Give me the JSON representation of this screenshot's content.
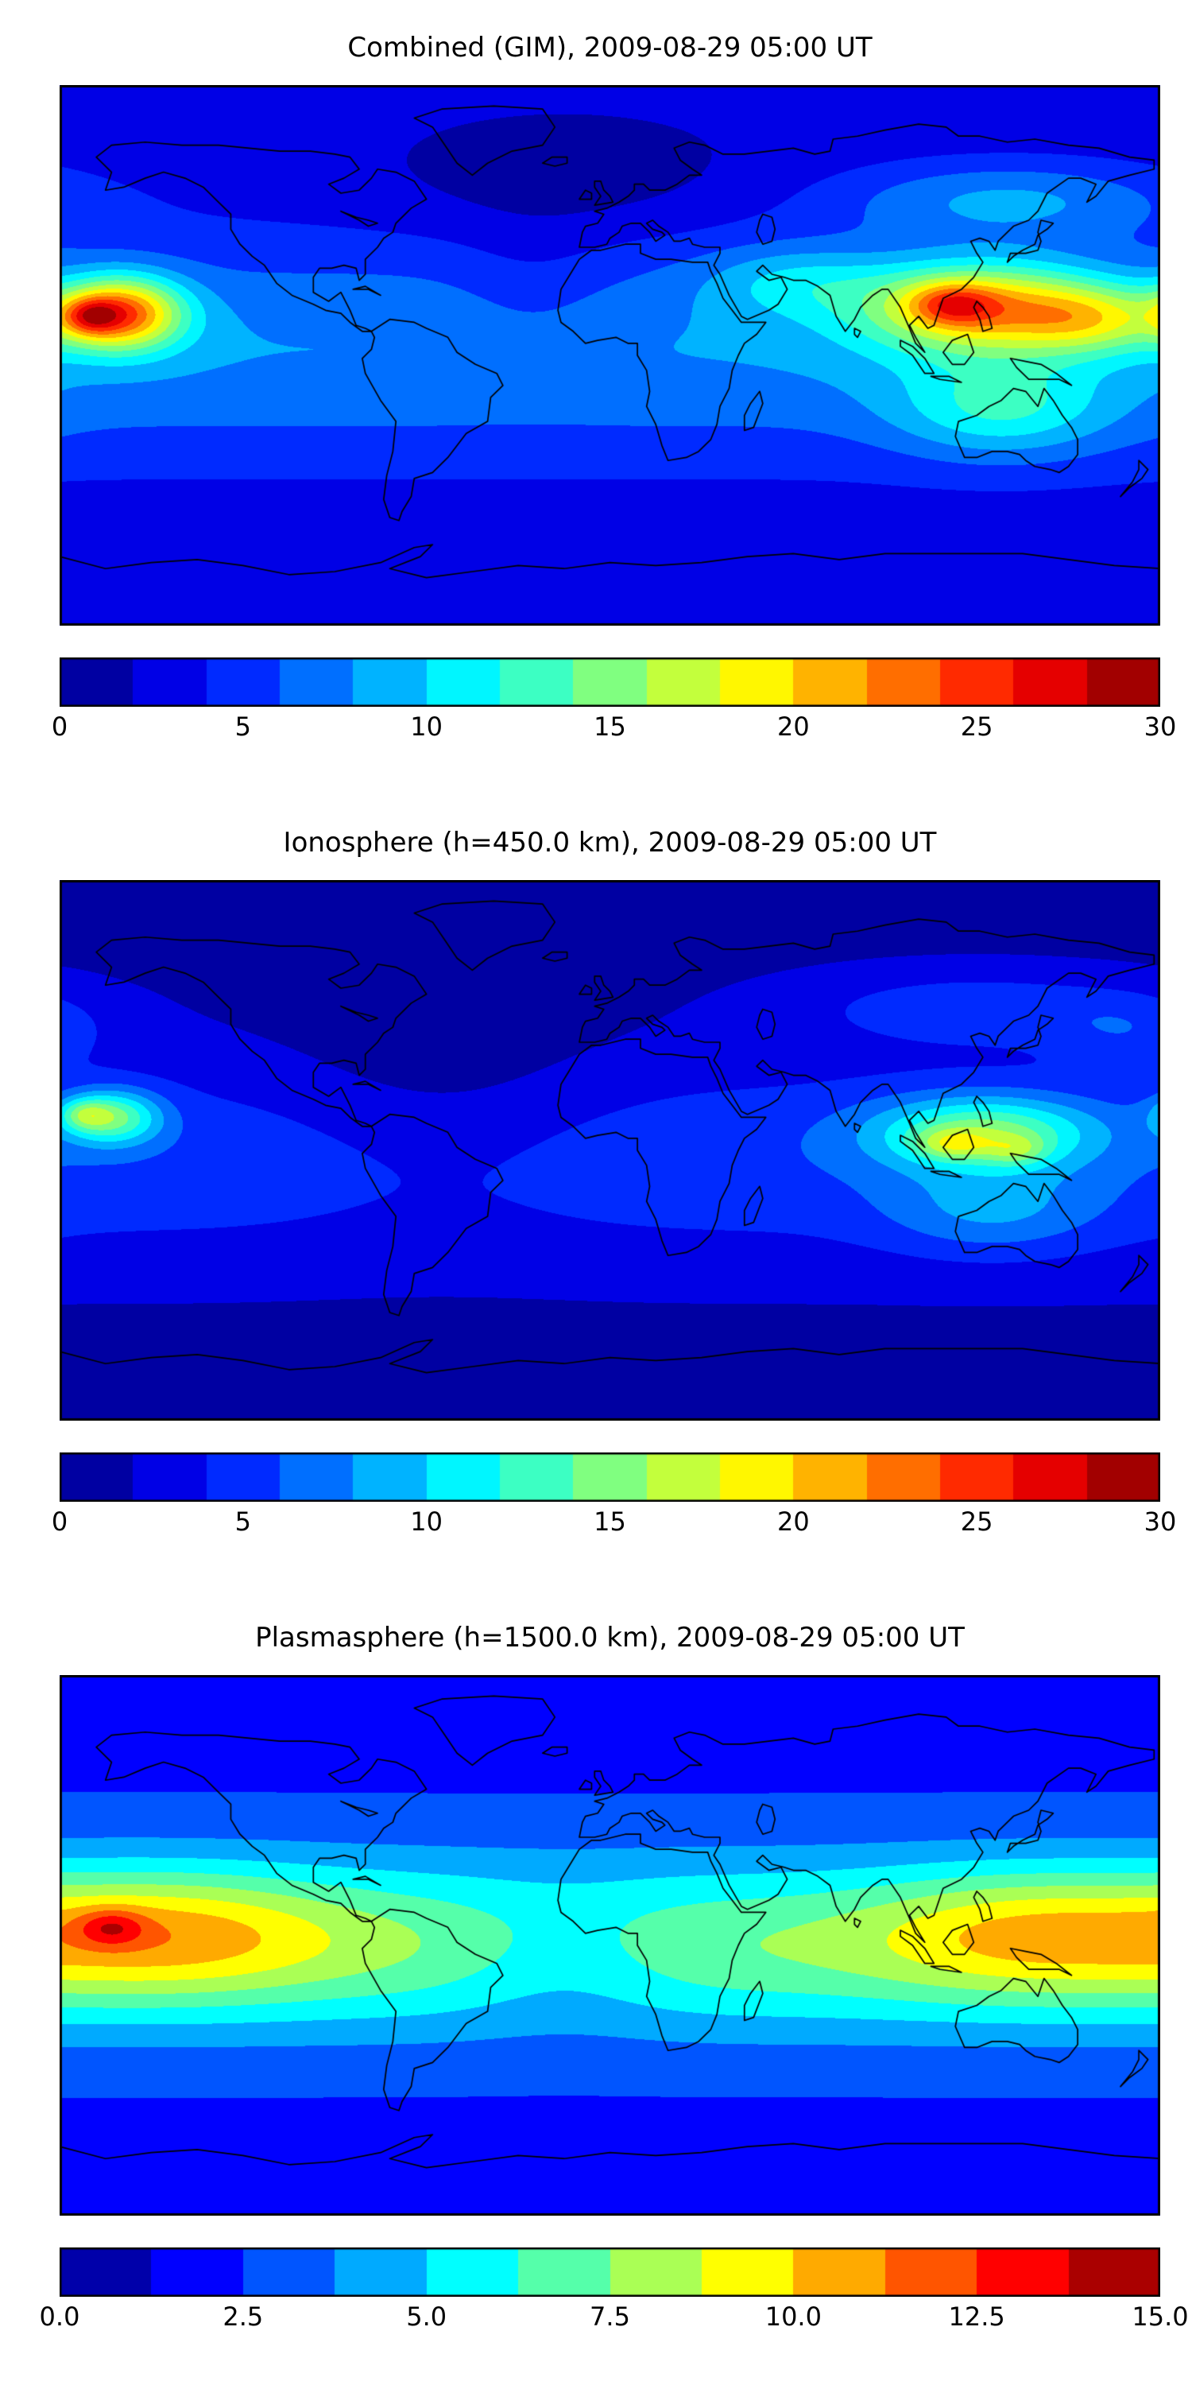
{
  "figure": {
    "background": "#ffffff"
  },
  "panels": [
    {
      "title": "Combined (GIM), 2009-08-29 05:00 UT",
      "colorbar": {
        "ticks": [
          "0",
          "5",
          "10",
          "15",
          "20",
          "25",
          "30"
        ]
      }
    },
    {
      "title": "Ionosphere  (h=450.0 km), 2009-08-29 05:00 UT",
      "colorbar": {
        "ticks": [
          "0",
          "5",
          "10",
          "15",
          "20",
          "25",
          "30"
        ]
      }
    },
    {
      "title": "Plasmasphere (h=1500.0 km), 2009-08-29 05:00 UT",
      "colorbar": {
        "ticks": [
          "0.0",
          "2.5",
          "5.0",
          "7.5",
          "10.0",
          "12.5",
          "15.0"
        ]
      }
    }
  ],
  "chart_data": [
    {
      "type": "heatmap",
      "subtype": "filled-contour-world-map",
      "title": "Combined (GIM), 2009-08-29 05:00 UT",
      "projection": "equirectangular",
      "lon_range": [
        -180,
        180
      ],
      "lat_range": [
        -90,
        90
      ],
      "colormap": "jet",
      "levels": {
        "min": 0,
        "max": 30,
        "step": 2
      },
      "colorbar_ticks": [
        0,
        5,
        10,
        15,
        20,
        25,
        30
      ],
      "field": {
        "base": {
          "offset": 2.5,
          "amp": 5.5,
          "lat_center": 2,
          "lat_sigma": 38
        },
        "blobs": [
          {
            "lon": 122,
            "lat": 16,
            "amp": 14,
            "slon": 40,
            "slat": 15
          },
          {
            "lon": 112,
            "lat": 17,
            "amp": 7,
            "slon": 14,
            "slat": 7
          },
          {
            "lon": 158,
            "lat": 12,
            "amp": 7,
            "slon": 24,
            "slat": 11
          },
          {
            "lon": -160,
            "lat": 14,
            "amp": 17,
            "slon": 20,
            "slat": 12
          },
          {
            "lon": -170,
            "lat": 13,
            "amp": 7,
            "slon": 9,
            "slat": 6
          },
          {
            "lon": -15,
            "lat": 58,
            "amp": -2.0,
            "slon": 60,
            "slat": 20
          },
          {
            "lon": -25,
            "lat": 20,
            "amp": -1.5,
            "slon": 25,
            "slat": 25
          },
          {
            "lon": 130,
            "lat": 52,
            "amp": 5,
            "slon": 55,
            "slat": 13
          },
          {
            "lon": 60,
            "lat": 25,
            "amp": 4,
            "slon": 30,
            "slat": 12
          },
          {
            "lon": 128,
            "lat": -18,
            "amp": 6,
            "slon": 35,
            "slat": 16
          }
        ]
      }
    },
    {
      "type": "heatmap",
      "subtype": "filled-contour-world-map",
      "title": "Ionosphere  (h=450.0 km), 2009-08-29 05:00 UT",
      "projection": "equirectangular",
      "lon_range": [
        -180,
        180
      ],
      "lat_range": [
        -90,
        90
      ],
      "colormap": "jet",
      "levels": {
        "min": 0,
        "max": 30,
        "step": 2
      },
      "colorbar_ticks": [
        0,
        5,
        10,
        15,
        20,
        25,
        30
      ],
      "field": {
        "base": {
          "offset": 1.3,
          "amp": 4.2,
          "lat_center": -3,
          "lat_sigma": 36
        },
        "blobs": [
          {
            "lon": 122,
            "lat": 6,
            "amp": 10,
            "slon": 36,
            "slat": 12
          },
          {
            "lon": 112,
            "lat": 2,
            "amp": 5,
            "slon": 12,
            "slat": 5
          },
          {
            "lon": 133,
            "lat": 0,
            "amp": 4,
            "slon": 10,
            "slat": 5
          },
          {
            "lon": -163,
            "lat": 11,
            "amp": 10,
            "slon": 16,
            "slat": 9
          },
          {
            "lon": -172,
            "lat": 12,
            "amp": 5,
            "slon": 8,
            "slat": 5
          },
          {
            "lon": -55,
            "lat": 15,
            "amp": -2.2,
            "slon": 55,
            "slat": 38
          },
          {
            "lon": 120,
            "lat": 48,
            "amp": 3.5,
            "slon": 60,
            "slat": 13
          },
          {
            "lon": 170,
            "lat": 40,
            "amp": 2.5,
            "slon": 25,
            "slat": 12
          },
          {
            "lon": 125,
            "lat": -20,
            "amp": 4,
            "slon": 35,
            "slat": 15
          }
        ]
      }
    },
    {
      "type": "heatmap",
      "subtype": "filled-contour-world-map",
      "title": "Plasmasphere (h=1500.0 km), 2009-08-29 05:00 UT",
      "projection": "equirectangular",
      "lon_range": [
        -180,
        180
      ],
      "lat_range": [
        -90,
        90
      ],
      "colormap": "jet",
      "levels": {
        "min": 0,
        "max": 15,
        "step": 1.25
      },
      "colorbar_ticks": [
        0.0,
        2.5,
        5.0,
        7.5,
        10.0,
        12.5,
        15.0
      ],
      "field": {
        "base": {
          "offset": 2.2,
          "amp": 5.2,
          "lat_center": 0,
          "lat_sigma": 30
        },
        "blobs": [
          {
            "lon": -145,
            "lat": 4,
            "amp": 3.6,
            "slon": 55,
            "slat": 20
          },
          {
            "lon": -163,
            "lat": 6,
            "amp": 3.0,
            "slon": 11,
            "slat": 6
          },
          {
            "lon": 135,
            "lat": 4,
            "amp": 3.0,
            "slon": 50,
            "slat": 20
          },
          {
            "lon": -15,
            "lat": -4,
            "amp": -1.6,
            "slon": 35,
            "slat": 22
          }
        ]
      }
    }
  ]
}
